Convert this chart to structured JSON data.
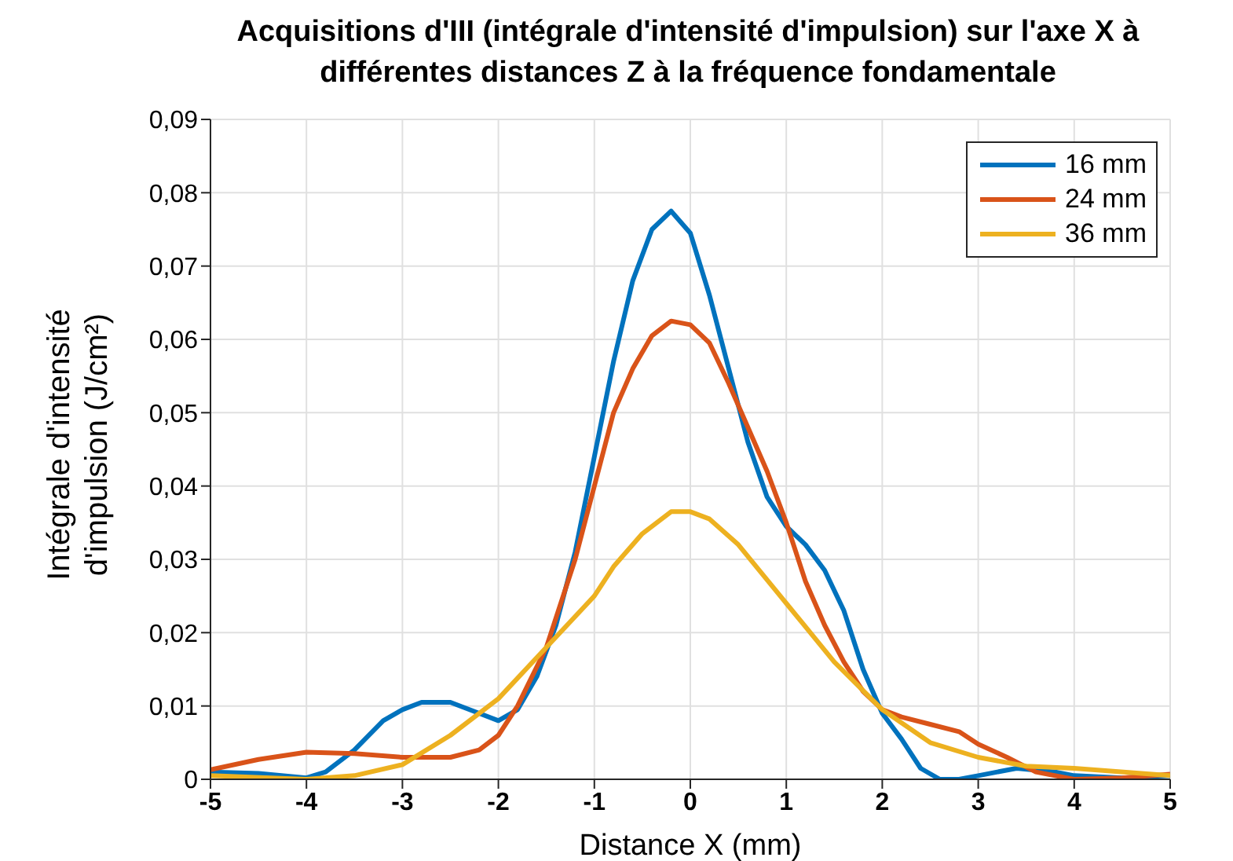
{
  "chart_data": {
    "type": "line",
    "title": "Acquisitions d'III (intégrale d'intensité d'impulsion) sur l'axe X à différentes distances Z à la fréquence fondamentale",
    "xlabel": "Distance X (mm)",
    "ylabel": "Intégrale d'intensité d'impulsion (J/cm²)",
    "series": [
      {
        "name": "16 mm",
        "color": "#0072bd",
        "x": [
          -5,
          -4.5,
          -4,
          -3.8,
          -3.5,
          -3.2,
          -3,
          -2.8,
          -2.5,
          -2.2,
          -2,
          -1.8,
          -1.6,
          -1.4,
          -1.2,
          -1,
          -0.8,
          -0.6,
          -0.4,
          -0.2,
          0,
          0.2,
          0.4,
          0.6,
          0.8,
          1,
          1.2,
          1.4,
          1.6,
          1.8,
          2,
          2.2,
          2.4,
          2.6,
          2.8,
          3,
          3.4,
          3.8,
          4,
          4.5,
          5
        ],
        "values": [
          0.001,
          0.0008,
          0.0002,
          0.001,
          0.004,
          0.008,
          0.0095,
          0.0105,
          0.0105,
          0.009,
          0.008,
          0.0095,
          0.014,
          0.021,
          0.031,
          0.044,
          0.057,
          0.068,
          0.075,
          0.0775,
          0.0745,
          0.066,
          0.056,
          0.046,
          0.0385,
          0.0345,
          0.032,
          0.0285,
          0.023,
          0.015,
          0.009,
          0.0055,
          0.0015,
          0,
          0,
          0.0005,
          0.0015,
          0.001,
          0.0005,
          0.0002,
          0.0005
        ]
      },
      {
        "name": "24 mm",
        "color": "#d95319",
        "x": [
          -5,
          -4.5,
          -4,
          -3.5,
          -3,
          -2.5,
          -2.2,
          -2,
          -1.8,
          -1.5,
          -1.2,
          -1,
          -0.8,
          -0.6,
          -0.4,
          -0.2,
          0,
          0.2,
          0.4,
          0.6,
          0.8,
          1,
          1.2,
          1.4,
          1.6,
          1.8,
          2,
          2.2,
          2.5,
          2.8,
          3,
          3.3,
          3.6,
          4,
          4.5,
          5
        ],
        "values": [
          0.0013,
          0.0027,
          0.0037,
          0.0035,
          0.003,
          0.003,
          0.004,
          0.006,
          0.01,
          0.018,
          0.03,
          0.04,
          0.05,
          0.056,
          0.0605,
          0.0625,
          0.062,
          0.0595,
          0.054,
          0.048,
          0.042,
          0.035,
          0.027,
          0.021,
          0.016,
          0.012,
          0.0095,
          0.0085,
          0.0075,
          0.0065,
          0.0048,
          0.003,
          0.001,
          0,
          0.0002,
          0.0007
        ]
      },
      {
        "name": "36 mm",
        "color": "#edb120",
        "x": [
          -5,
          -4,
          -3.5,
          -3,
          -2.5,
          -2,
          -1.5,
          -1,
          -0.8,
          -0.5,
          -0.2,
          0,
          0.2,
          0.5,
          1,
          1.5,
          2,
          2.5,
          3,
          3.5,
          4,
          5
        ],
        "values": [
          0.0005,
          0,
          0.0005,
          0.002,
          0.006,
          0.011,
          0.018,
          0.025,
          0.029,
          0.0335,
          0.0365,
          0.0365,
          0.0355,
          0.032,
          0.024,
          0.016,
          0.0095,
          0.005,
          0.003,
          0.0018,
          0.0015,
          0.0005
        ]
      }
    ],
    "xlim": [
      -5,
      5
    ],
    "xticks": [
      -5,
      -4,
      -3,
      -2,
      -1,
      0,
      1,
      2,
      3,
      4,
      5
    ],
    "ylim": [
      0,
      0.09
    ],
    "yticks": [
      0,
      {
        "value": 0.01,
        "label": "0,01"
      },
      {
        "value": 0.02,
        "label": "0,02"
      },
      {
        "value": 0.03,
        "label": "0,03"
      },
      {
        "value": 0.04,
        "label": "0,04"
      },
      {
        "value": 0.05,
        "label": "0,05"
      },
      {
        "value": 0.06,
        "label": "0,06"
      },
      {
        "value": 0.07,
        "label": "0,07"
      },
      {
        "value": 0.08,
        "label": "0,08"
      },
      {
        "value": 0.09,
        "label": "0,09"
      }
    ],
    "grid": true,
    "legend": "top right",
    "marker": "none",
    "line_style": "solid"
  }
}
